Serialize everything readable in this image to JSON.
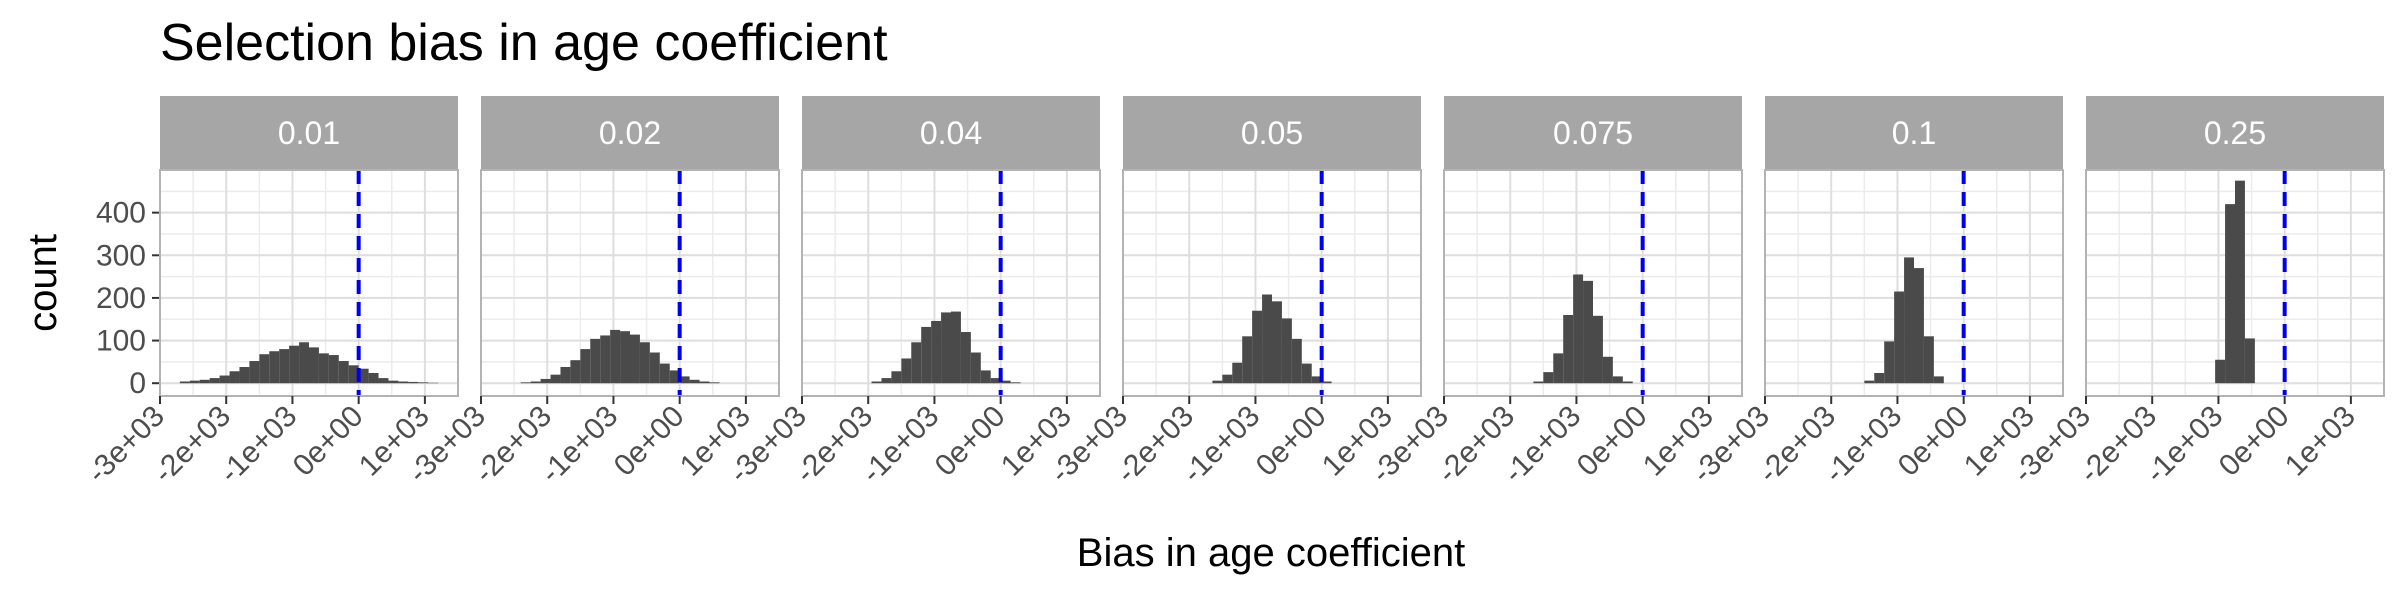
{
  "chart_data": {
    "type": "bar",
    "title": "Selection bias in age coefficient",
    "xlabel": "Bias in age coefficient",
    "ylabel": "count",
    "xlim": [
      -3000,
      1500
    ],
    "ylim": [
      -30,
      500
    ],
    "x_ticks": [
      -3000,
      -2000,
      -1000,
      0,
      1000
    ],
    "x_tick_labels": [
      "-3e+03",
      "-2e+03",
      "-1e+03",
      "0e+00",
      "1e+03"
    ],
    "y_ticks": [
      0,
      100,
      200,
      300,
      400
    ],
    "y_tick_labels": [
      "0",
      "100",
      "200",
      "300",
      "400"
    ],
    "reference_line": {
      "x": 0,
      "color": "#0000ee",
      "style": "dashed"
    },
    "bin_width": 150,
    "grid": true,
    "colors": {
      "bar": "#4a4a4a",
      "strip": "#a6a6a6",
      "grid": "#dedede",
      "border": "#b3b3b3"
    },
    "panels": [
      {
        "label": "0.01",
        "bins": [
          {
            "x0": -2700,
            "count": 4
          },
          {
            "x0": -2550,
            "count": 6
          },
          {
            "x0": -2400,
            "count": 8
          },
          {
            "x0": -2250,
            "count": 12
          },
          {
            "x0": -2100,
            "count": 18
          },
          {
            "x0": -1950,
            "count": 28
          },
          {
            "x0": -1800,
            "count": 38
          },
          {
            "x0": -1650,
            "count": 52
          },
          {
            "x0": -1500,
            "count": 68
          },
          {
            "x0": -1350,
            "count": 75
          },
          {
            "x0": -1200,
            "count": 80
          },
          {
            "x0": -1050,
            "count": 88
          },
          {
            "x0": -900,
            "count": 96
          },
          {
            "x0": -750,
            "count": 84
          },
          {
            "x0": -600,
            "count": 70
          },
          {
            "x0": -450,
            "count": 66
          },
          {
            "x0": -300,
            "count": 52
          },
          {
            "x0": -150,
            "count": 42
          },
          {
            "x0": 0,
            "count": 34
          },
          {
            "x0": 150,
            "count": 24
          },
          {
            "x0": 300,
            "count": 12
          },
          {
            "x0": 450,
            "count": 6
          },
          {
            "x0": 600,
            "count": 4
          },
          {
            "x0": 750,
            "count": 3
          },
          {
            "x0": 900,
            "count": 2
          },
          {
            "x0": 1050,
            "count": 1
          }
        ]
      },
      {
        "label": "0.02",
        "bins": [
          {
            "x0": -2400,
            "count": 2
          },
          {
            "x0": -2250,
            "count": 4
          },
          {
            "x0": -2100,
            "count": 10
          },
          {
            "x0": -1950,
            "count": 20
          },
          {
            "x0": -1800,
            "count": 38
          },
          {
            "x0": -1650,
            "count": 54
          },
          {
            "x0": -1500,
            "count": 80
          },
          {
            "x0": -1350,
            "count": 104
          },
          {
            "x0": -1200,
            "count": 112
          },
          {
            "x0": -1050,
            "count": 125
          },
          {
            "x0": -900,
            "count": 122
          },
          {
            "x0": -750,
            "count": 114
          },
          {
            "x0": -600,
            "count": 96
          },
          {
            "x0": -450,
            "count": 72
          },
          {
            "x0": -300,
            "count": 46
          },
          {
            "x0": -150,
            "count": 30
          },
          {
            "x0": 0,
            "count": 16
          },
          {
            "x0": 150,
            "count": 8
          },
          {
            "x0": 300,
            "count": 4
          },
          {
            "x0": 450,
            "count": 2
          }
        ]
      },
      {
        "label": "0.04",
        "bins": [
          {
            "x0": -1950,
            "count": 4
          },
          {
            "x0": -1800,
            "count": 12
          },
          {
            "x0": -1650,
            "count": 28
          },
          {
            "x0": -1500,
            "count": 58
          },
          {
            "x0": -1350,
            "count": 96
          },
          {
            "x0": -1200,
            "count": 132
          },
          {
            "x0": -1050,
            "count": 146
          },
          {
            "x0": -900,
            "count": 166
          },
          {
            "x0": -750,
            "count": 168
          },
          {
            "x0": -600,
            "count": 120
          },
          {
            "x0": -450,
            "count": 72
          },
          {
            "x0": -300,
            "count": 30
          },
          {
            "x0": -150,
            "count": 12
          },
          {
            "x0": 0,
            "count": 6
          },
          {
            "x0": 150,
            "count": 2
          }
        ]
      },
      {
        "label": "0.05",
        "bins": [
          {
            "x0": -1650,
            "count": 6
          },
          {
            "x0": -1500,
            "count": 20
          },
          {
            "x0": -1350,
            "count": 48
          },
          {
            "x0": -1200,
            "count": 110
          },
          {
            "x0": -1050,
            "count": 170
          },
          {
            "x0": -900,
            "count": 208
          },
          {
            "x0": -750,
            "count": 192
          },
          {
            "x0": -600,
            "count": 152
          },
          {
            "x0": -450,
            "count": 104
          },
          {
            "x0": -300,
            "count": 46
          },
          {
            "x0": -150,
            "count": 16
          },
          {
            "x0": 0,
            "count": 4
          }
        ]
      },
      {
        "label": "0.075",
        "bins": [
          {
            "x0": -1650,
            "count": 4
          },
          {
            "x0": -1500,
            "count": 26
          },
          {
            "x0": -1350,
            "count": 70
          },
          {
            "x0": -1200,
            "count": 160
          },
          {
            "x0": -1050,
            "count": 255
          },
          {
            "x0": -900,
            "count": 240
          },
          {
            "x0": -750,
            "count": 158
          },
          {
            "x0": -600,
            "count": 62
          },
          {
            "x0": -450,
            "count": 16
          },
          {
            "x0": -300,
            "count": 4
          }
        ]
      },
      {
        "label": "0.1",
        "bins": [
          {
            "x0": -1500,
            "count": 6
          },
          {
            "x0": -1350,
            "count": 24
          },
          {
            "x0": -1200,
            "count": 98
          },
          {
            "x0": -1050,
            "count": 215
          },
          {
            "x0": -900,
            "count": 295
          },
          {
            "x0": -750,
            "count": 270
          },
          {
            "x0": -600,
            "count": 110
          },
          {
            "x0": -450,
            "count": 16
          }
        ]
      },
      {
        "label": "0.25",
        "bins": [
          {
            "x0": -1050,
            "count": 55
          },
          {
            "x0": -900,
            "count": 420
          },
          {
            "x0": -750,
            "count": 475
          },
          {
            "x0": -600,
            "count": 105
          }
        ]
      }
    ]
  }
}
